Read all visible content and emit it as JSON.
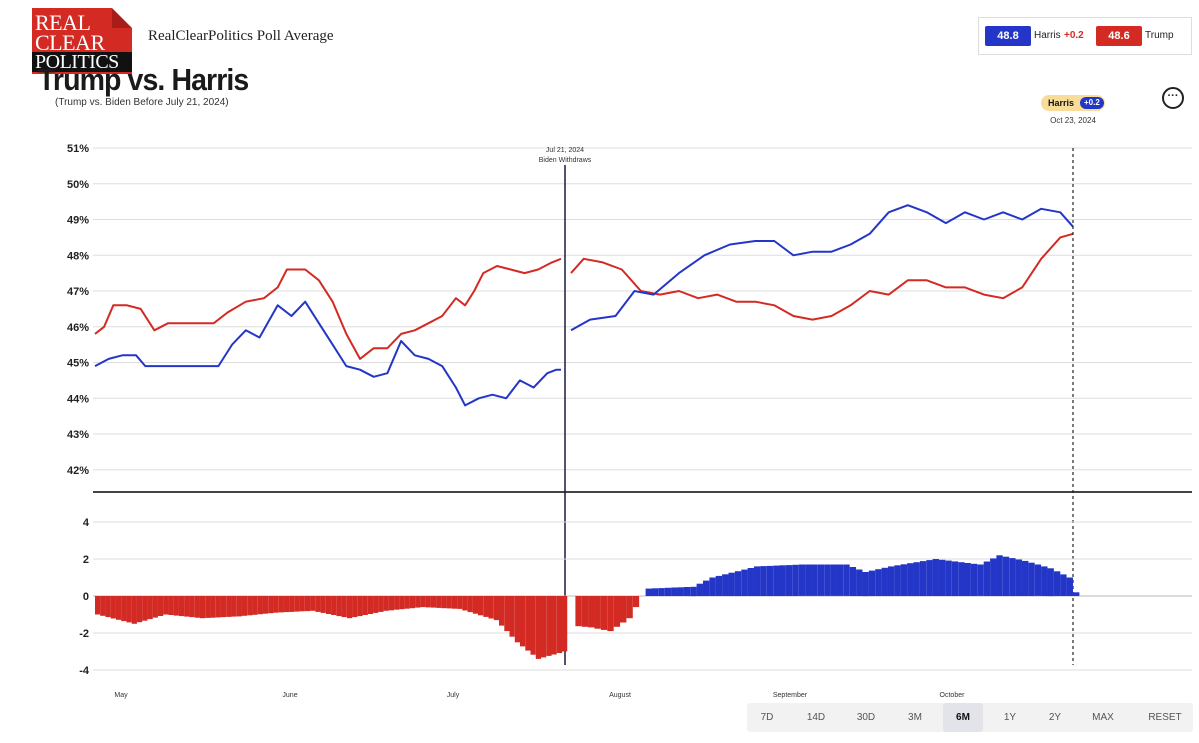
{
  "brand": {
    "logo_lines": [
      "REAL",
      "CLEAR",
      "POLITICS"
    ],
    "title": "RealClearPolitics Poll Average"
  },
  "header": {
    "title": "Trump vs. Harris",
    "subtitle": "(Trump vs. Biden Before July 21, 2024)"
  },
  "summary": {
    "harris": {
      "value": "48.8",
      "name": "Harris",
      "diff": "+0.2",
      "color": "#2436c8"
    },
    "trump": {
      "value": "48.6",
      "name": "Trump",
      "color": "#d42a24"
    }
  },
  "lead_badge": {
    "name": "Harris",
    "value": "+0.2",
    "date": "Oct 23, 2024"
  },
  "more_button": {
    "label": "···",
    "icon": "more-icon"
  },
  "range_buttons": [
    "7D",
    "14D",
    "30D",
    "3M",
    "6M",
    "1Y",
    "2Y",
    "MAX",
    "RESET"
  ],
  "active_range": "6M",
  "chart_data": {
    "type": "line",
    "x_start": "2024-04-23",
    "x_end": "2024-10-23",
    "month_labels": [
      {
        "label": "May",
        "date": "2024-05-01"
      },
      {
        "label": "June",
        "date": "2024-06-01"
      },
      {
        "label": "July",
        "date": "2024-07-01"
      },
      {
        "label": "August",
        "date": "2024-08-01"
      },
      {
        "label": "September",
        "date": "2024-09-01"
      },
      {
        "label": "October",
        "date": "2024-10-01"
      }
    ],
    "ylim": [
      41.3,
      51
    ],
    "yticks": [
      "51%",
      "50%",
      "49%",
      "48%",
      "47%",
      "46%",
      "45%",
      "44%",
      "43%",
      "42%"
    ],
    "ytick_values": [
      51,
      50,
      49,
      48,
      47,
      46,
      45,
      44,
      43,
      42
    ],
    "event_line": {
      "date": "2024-07-21",
      "label_date": "Jul 21, 2024",
      "label": "Biden Withdraws"
    },
    "cursor_date": "2024-10-23",
    "colors": {
      "harris": "#2436c8",
      "trump": "#d42a24",
      "grid": "#dddddd"
    },
    "series": [
      {
        "name": "Trump",
        "color": "#d42a24",
        "points": [
          [
            "2024-04-23",
            45.8
          ],
          [
            "2024-04-25",
            46.0
          ],
          [
            "2024-04-27",
            46.6
          ],
          [
            "2024-04-30",
            46.6
          ],
          [
            "2024-05-03",
            46.5
          ],
          [
            "2024-05-06",
            45.9
          ],
          [
            "2024-05-09",
            46.1
          ],
          [
            "2024-05-14",
            46.1
          ],
          [
            "2024-05-19",
            46.1
          ],
          [
            "2024-05-22",
            46.4
          ],
          [
            "2024-05-26",
            46.7
          ],
          [
            "2024-05-30",
            46.8
          ],
          [
            "2024-06-02",
            47.1
          ],
          [
            "2024-06-04",
            47.6
          ],
          [
            "2024-06-08",
            47.6
          ],
          [
            "2024-06-11",
            47.3
          ],
          [
            "2024-06-14",
            46.7
          ],
          [
            "2024-06-17",
            45.8
          ],
          [
            "2024-06-20",
            45.1
          ],
          [
            "2024-06-23",
            45.4
          ],
          [
            "2024-06-26",
            45.4
          ],
          [
            "2024-06-29",
            45.8
          ],
          [
            "2024-07-02",
            45.9
          ],
          [
            "2024-07-05",
            46.1
          ],
          [
            "2024-07-08",
            46.3
          ],
          [
            "2024-07-11",
            46.8
          ],
          [
            "2024-07-13",
            46.6
          ],
          [
            "2024-07-15",
            47.0
          ],
          [
            "2024-07-17",
            47.5
          ],
          [
            "2024-07-20",
            47.7
          ],
          [
            "2024-07-23",
            47.6
          ],
          [
            "2024-07-26",
            47.5
          ],
          [
            "2024-07-29",
            47.6
          ],
          [
            "2024-08-01",
            47.8
          ],
          [
            "2024-08-03",
            47.9
          ],
          [
            "2024-08-05",
            47.5
          ],
          [
            "2024-08-07",
            47.9
          ],
          [
            "2024-08-10",
            47.8
          ],
          [
            "2024-08-13",
            47.6
          ],
          [
            "2024-08-16",
            47.0
          ],
          [
            "2024-08-19",
            46.9
          ],
          [
            "2024-08-22",
            47.0
          ],
          [
            "2024-08-25",
            46.8
          ],
          [
            "2024-08-28",
            46.9
          ],
          [
            "2024-08-31",
            46.7
          ],
          [
            "2024-09-03",
            46.7
          ],
          [
            "2024-09-06",
            46.6
          ],
          [
            "2024-09-09",
            46.3
          ],
          [
            "2024-09-12",
            46.2
          ],
          [
            "2024-09-15",
            46.3
          ],
          [
            "2024-09-18",
            46.6
          ],
          [
            "2024-09-21",
            47.0
          ],
          [
            "2024-09-24",
            46.9
          ],
          [
            "2024-09-27",
            47.3
          ],
          [
            "2024-09-30",
            47.3
          ],
          [
            "2024-10-03",
            47.1
          ],
          [
            "2024-10-06",
            47.1
          ],
          [
            "2024-10-09",
            46.9
          ],
          [
            "2024-10-12",
            46.8
          ],
          [
            "2024-10-15",
            47.1
          ],
          [
            "2024-10-18",
            47.9
          ],
          [
            "2024-10-21",
            48.5
          ],
          [
            "2024-10-23",
            48.6
          ]
        ]
      },
      {
        "name": "Harris",
        "color": "#2436c8",
        "points": [
          [
            "2024-04-23",
            44.9
          ],
          [
            "2024-04-26",
            45.1
          ],
          [
            "2024-04-29",
            45.2
          ],
          [
            "2024-05-02",
            45.2
          ],
          [
            "2024-05-04",
            44.9
          ],
          [
            "2024-05-08",
            44.9
          ],
          [
            "2024-05-12",
            44.9
          ],
          [
            "2024-05-16",
            44.9
          ],
          [
            "2024-05-20",
            44.9
          ],
          [
            "2024-05-23",
            45.5
          ],
          [
            "2024-05-26",
            45.9
          ],
          [
            "2024-05-29",
            45.7
          ],
          [
            "2024-06-02",
            46.6
          ],
          [
            "2024-06-05",
            46.3
          ],
          [
            "2024-06-08",
            46.7
          ],
          [
            "2024-06-11",
            46.1
          ],
          [
            "2024-06-14",
            45.5
          ],
          [
            "2024-06-17",
            44.9
          ],
          [
            "2024-06-20",
            44.8
          ],
          [
            "2024-06-23",
            44.6
          ],
          [
            "2024-06-26",
            44.7
          ],
          [
            "2024-06-29",
            45.6
          ],
          [
            "2024-07-02",
            45.2
          ],
          [
            "2024-07-05",
            45.1
          ],
          [
            "2024-07-08",
            44.9
          ],
          [
            "2024-07-11",
            44.3
          ],
          [
            "2024-07-13",
            43.8
          ],
          [
            "2024-07-16",
            44.0
          ],
          [
            "2024-07-19",
            44.1
          ],
          [
            "2024-07-22",
            44.0
          ],
          [
            "2024-07-25",
            44.5
          ],
          [
            "2024-07-28",
            44.3
          ],
          [
            "2024-07-31",
            44.7
          ],
          [
            "2024-08-02",
            44.8
          ],
          [
            "2024-08-03",
            44.8
          ],
          [
            "2024-08-05",
            45.9
          ],
          [
            "2024-08-08",
            46.2
          ],
          [
            "2024-08-12",
            46.3
          ],
          [
            "2024-08-15",
            47.0
          ],
          [
            "2024-08-18",
            46.9
          ],
          [
            "2024-08-22",
            47.5
          ],
          [
            "2024-08-26",
            48.0
          ],
          [
            "2024-08-30",
            48.3
          ],
          [
            "2024-09-03",
            48.4
          ],
          [
            "2024-09-06",
            48.4
          ],
          [
            "2024-09-09",
            48.0
          ],
          [
            "2024-09-12",
            48.1
          ],
          [
            "2024-09-15",
            48.1
          ],
          [
            "2024-09-18",
            48.3
          ],
          [
            "2024-09-21",
            48.6
          ],
          [
            "2024-09-24",
            49.2
          ],
          [
            "2024-09-27",
            49.4
          ],
          [
            "2024-09-30",
            49.2
          ],
          [
            "2024-10-03",
            48.9
          ],
          [
            "2024-10-06",
            49.2
          ],
          [
            "2024-10-09",
            49.0
          ],
          [
            "2024-10-12",
            49.2
          ],
          [
            "2024-10-15",
            49.0
          ],
          [
            "2024-10-18",
            49.3
          ],
          [
            "2024-10-21",
            49.2
          ],
          [
            "2024-10-23",
            48.8
          ]
        ]
      }
    ],
    "spread": {
      "type": "bar",
      "ylim": [
        -4.2,
        4.8
      ],
      "yticks": [
        4,
        2,
        0,
        -2,
        -4
      ],
      "positive_color": "#2436c8",
      "negative_color": "#d42a24",
      "points": [
        [
          "2024-04-23",
          -1.0
        ],
        [
          "2024-04-30",
          -1.5
        ],
        [
          "2024-05-06",
          -1.0
        ],
        [
          "2024-05-13",
          -1.2
        ],
        [
          "2024-05-20",
          -1.1
        ],
        [
          "2024-05-27",
          -0.9
        ],
        [
          "2024-06-03",
          -0.8
        ],
        [
          "2024-06-10",
          -1.2
        ],
        [
          "2024-06-17",
          -0.8
        ],
        [
          "2024-06-24",
          -0.6
        ],
        [
          "2024-07-01",
          -0.7
        ],
        [
          "2024-07-08",
          -1.3
        ],
        [
          "2024-07-12",
          -2.5
        ],
        [
          "2024-07-16",
          -3.4
        ],
        [
          "2024-07-21",
          -3.0
        ],
        [
          "2024-08-05",
          -1.6
        ],
        [
          "2024-08-08",
          -1.7
        ],
        [
          "2024-08-11",
          -1.9
        ],
        [
          "2024-08-14",
          -1.2
        ],
        [
          "2024-08-16",
          0.0
        ],
        [
          "2024-08-17",
          0.4
        ],
        [
          "2024-08-24",
          0.5
        ],
        [
          "2024-08-27",
          1.0
        ],
        [
          "2024-09-03",
          1.6
        ],
        [
          "2024-09-10",
          1.7
        ],
        [
          "2024-09-17",
          1.7
        ],
        [
          "2024-09-20",
          1.3
        ],
        [
          "2024-09-24",
          1.6
        ],
        [
          "2024-10-01",
          2.0
        ],
        [
          "2024-10-08",
          1.7
        ],
        [
          "2024-10-11",
          2.2
        ],
        [
          "2024-10-15",
          1.9
        ],
        [
          "2024-10-19",
          1.5
        ],
        [
          "2024-10-22",
          1.0
        ],
        [
          "2024-10-23",
          0.2
        ]
      ]
    }
  }
}
